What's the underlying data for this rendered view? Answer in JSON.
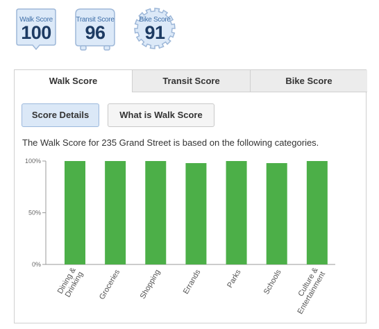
{
  "badges": {
    "walk": {
      "label": "Walk Score",
      "value": "100",
      "icon": "walk-score-badge"
    },
    "transit": {
      "label": "Transit Score",
      "value": "96",
      "icon": "transit-score-badge"
    },
    "bike": {
      "label": "Bike Score",
      "value": "91",
      "icon": "bike-score-badge"
    }
  },
  "tabs": [
    {
      "label": "Walk Score",
      "active": true
    },
    {
      "label": "Transit Score",
      "active": false
    },
    {
      "label": "Bike Score",
      "active": false
    }
  ],
  "buttons": {
    "score_details": "Score Details",
    "what_is": "What is Walk Score"
  },
  "description": "The Walk Score for 235 Grand Street is based on the following categories.",
  "colors": {
    "bar": "#4caf48",
    "badge_text": "#1d3b63",
    "badge_fill": "#dce9f8"
  },
  "chart_data": {
    "type": "bar",
    "categories": [
      [
        "Dining &",
        "Drinking"
      ],
      [
        "Groceries"
      ],
      [
        "Shopping"
      ],
      [
        "Errands"
      ],
      [
        "Parks"
      ],
      [
        "Schools"
      ],
      [
        "Culture &",
        "Entertainment"
      ]
    ],
    "values": [
      100,
      100,
      100,
      98,
      100,
      98,
      100
    ],
    "yticks": [
      "100%",
      "50%",
      "0%"
    ],
    "ylim": [
      0,
      100
    ]
  }
}
